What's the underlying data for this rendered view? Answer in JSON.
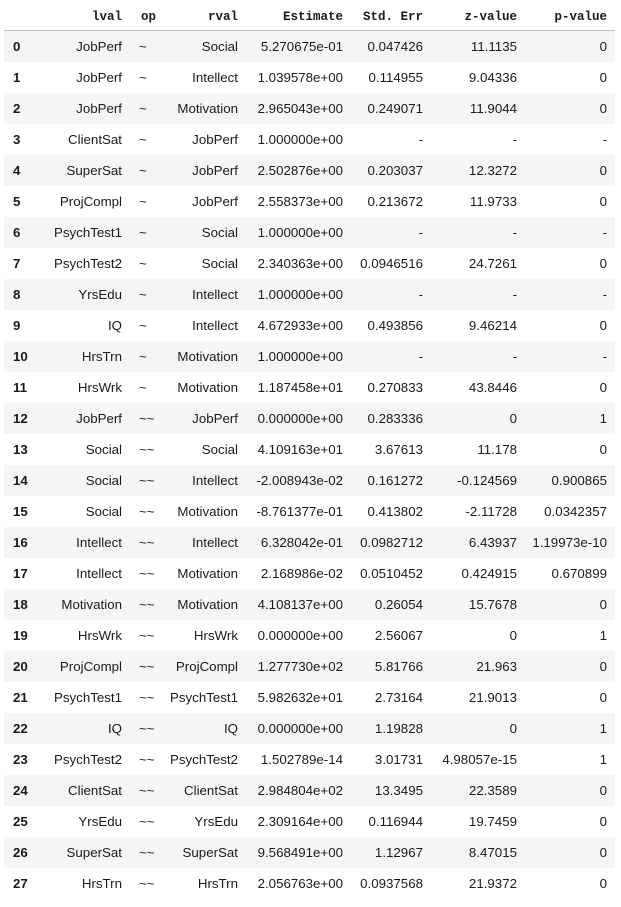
{
  "columns": {
    "index": "",
    "lval": "lval",
    "op": "op",
    "rval": "rval",
    "estimate": "Estimate",
    "stderr": "Std. Err",
    "zvalue": "z-value",
    "pvalue": "p-value"
  },
  "rows": [
    {
      "idx": "0",
      "lval": "JobPerf",
      "op": "~",
      "rval": "Social",
      "est": "5.270675e-01",
      "se": "0.047426",
      "z": "11.1135",
      "p": "0"
    },
    {
      "idx": "1",
      "lval": "JobPerf",
      "op": "~",
      "rval": "Intellect",
      "est": "1.039578e+00",
      "se": "0.114955",
      "z": "9.04336",
      "p": "0"
    },
    {
      "idx": "2",
      "lval": "JobPerf",
      "op": "~",
      "rval": "Motivation",
      "est": "2.965043e+00",
      "se": "0.249071",
      "z": "11.9044",
      "p": "0"
    },
    {
      "idx": "3",
      "lval": "ClientSat",
      "op": "~",
      "rval": "JobPerf",
      "est": "1.000000e+00",
      "se": "-",
      "z": "-",
      "p": "-"
    },
    {
      "idx": "4",
      "lval": "SuperSat",
      "op": "~",
      "rval": "JobPerf",
      "est": "2.502876e+00",
      "se": "0.203037",
      "z": "12.3272",
      "p": "0"
    },
    {
      "idx": "5",
      "lval": "ProjCompl",
      "op": "~",
      "rval": "JobPerf",
      "est": "2.558373e+00",
      "se": "0.213672",
      "z": "11.9733",
      "p": "0"
    },
    {
      "idx": "6",
      "lval": "PsychTest1",
      "op": "~",
      "rval": "Social",
      "est": "1.000000e+00",
      "se": "-",
      "z": "-",
      "p": "-"
    },
    {
      "idx": "7",
      "lval": "PsychTest2",
      "op": "~",
      "rval": "Social",
      "est": "2.340363e+00",
      "se": "0.0946516",
      "z": "24.7261",
      "p": "0"
    },
    {
      "idx": "8",
      "lval": "YrsEdu",
      "op": "~",
      "rval": "Intellect",
      "est": "1.000000e+00",
      "se": "-",
      "z": "-",
      "p": "-"
    },
    {
      "idx": "9",
      "lval": "IQ",
      "op": "~",
      "rval": "Intellect",
      "est": "4.672933e+00",
      "se": "0.493856",
      "z": "9.46214",
      "p": "0"
    },
    {
      "idx": "10",
      "lval": "HrsTrn",
      "op": "~",
      "rval": "Motivation",
      "est": "1.000000e+00",
      "se": "-",
      "z": "-",
      "p": "-"
    },
    {
      "idx": "11",
      "lval": "HrsWrk",
      "op": "~",
      "rval": "Motivation",
      "est": "1.187458e+01",
      "se": "0.270833",
      "z": "43.8446",
      "p": "0"
    },
    {
      "idx": "12",
      "lval": "JobPerf",
      "op": "~~",
      "rval": "JobPerf",
      "est": "0.000000e+00",
      "se": "0.283336",
      "z": "0",
      "p": "1"
    },
    {
      "idx": "13",
      "lval": "Social",
      "op": "~~",
      "rval": "Social",
      "est": "4.109163e+01",
      "se": "3.67613",
      "z": "11.178",
      "p": "0"
    },
    {
      "idx": "14",
      "lval": "Social",
      "op": "~~",
      "rval": "Intellect",
      "est": "-2.008943e-02",
      "se": "0.161272",
      "z": "-0.124569",
      "p": "0.900865"
    },
    {
      "idx": "15",
      "lval": "Social",
      "op": "~~",
      "rval": "Motivation",
      "est": "-8.761377e-01",
      "se": "0.413802",
      "z": "-2.11728",
      "p": "0.0342357"
    },
    {
      "idx": "16",
      "lval": "Intellect",
      "op": "~~",
      "rval": "Intellect",
      "est": "6.328042e-01",
      "se": "0.0982712",
      "z": "6.43937",
      "p": "1.19973e-10"
    },
    {
      "idx": "17",
      "lval": "Intellect",
      "op": "~~",
      "rval": "Motivation",
      "est": "2.168986e-02",
      "se": "0.0510452",
      "z": "0.424915",
      "p": "0.670899"
    },
    {
      "idx": "18",
      "lval": "Motivation",
      "op": "~~",
      "rval": "Motivation",
      "est": "4.108137e+00",
      "se": "0.26054",
      "z": "15.7678",
      "p": "0"
    },
    {
      "idx": "19",
      "lval": "HrsWrk",
      "op": "~~",
      "rval": "HrsWrk",
      "est": "0.000000e+00",
      "se": "2.56067",
      "z": "0",
      "p": "1"
    },
    {
      "idx": "20",
      "lval": "ProjCompl",
      "op": "~~",
      "rval": "ProjCompl",
      "est": "1.277730e+02",
      "se": "5.81766",
      "z": "21.963",
      "p": "0"
    },
    {
      "idx": "21",
      "lval": "PsychTest1",
      "op": "~~",
      "rval": "PsychTest1",
      "est": "5.982632e+01",
      "se": "2.73164",
      "z": "21.9013",
      "p": "0"
    },
    {
      "idx": "22",
      "lval": "IQ",
      "op": "~~",
      "rval": "IQ",
      "est": "0.000000e+00",
      "se": "1.19828",
      "z": "0",
      "p": "1"
    },
    {
      "idx": "23",
      "lval": "PsychTest2",
      "op": "~~",
      "rval": "PsychTest2",
      "est": "1.502789e-14",
      "se": "3.01731",
      "z": "4.98057e-15",
      "p": "1"
    },
    {
      "idx": "24",
      "lval": "ClientSat",
      "op": "~~",
      "rval": "ClientSat",
      "est": "2.984804e+02",
      "se": "13.3495",
      "z": "22.3589",
      "p": "0"
    },
    {
      "idx": "25",
      "lval": "YrsEdu",
      "op": "~~",
      "rval": "YrsEdu",
      "est": "2.309164e+00",
      "se": "0.116944",
      "z": "19.7459",
      "p": "0"
    },
    {
      "idx": "26",
      "lval": "SuperSat",
      "op": "~~",
      "rval": "SuperSat",
      "est": "9.568491e+00",
      "se": "1.12967",
      "z": "8.47015",
      "p": "0"
    },
    {
      "idx": "27",
      "lval": "HrsTrn",
      "op": "~~",
      "rval": "HrsTrn",
      "est": "2.056763e+00",
      "se": "0.0937568",
      "z": "21.9372",
      "p": "0"
    }
  ]
}
